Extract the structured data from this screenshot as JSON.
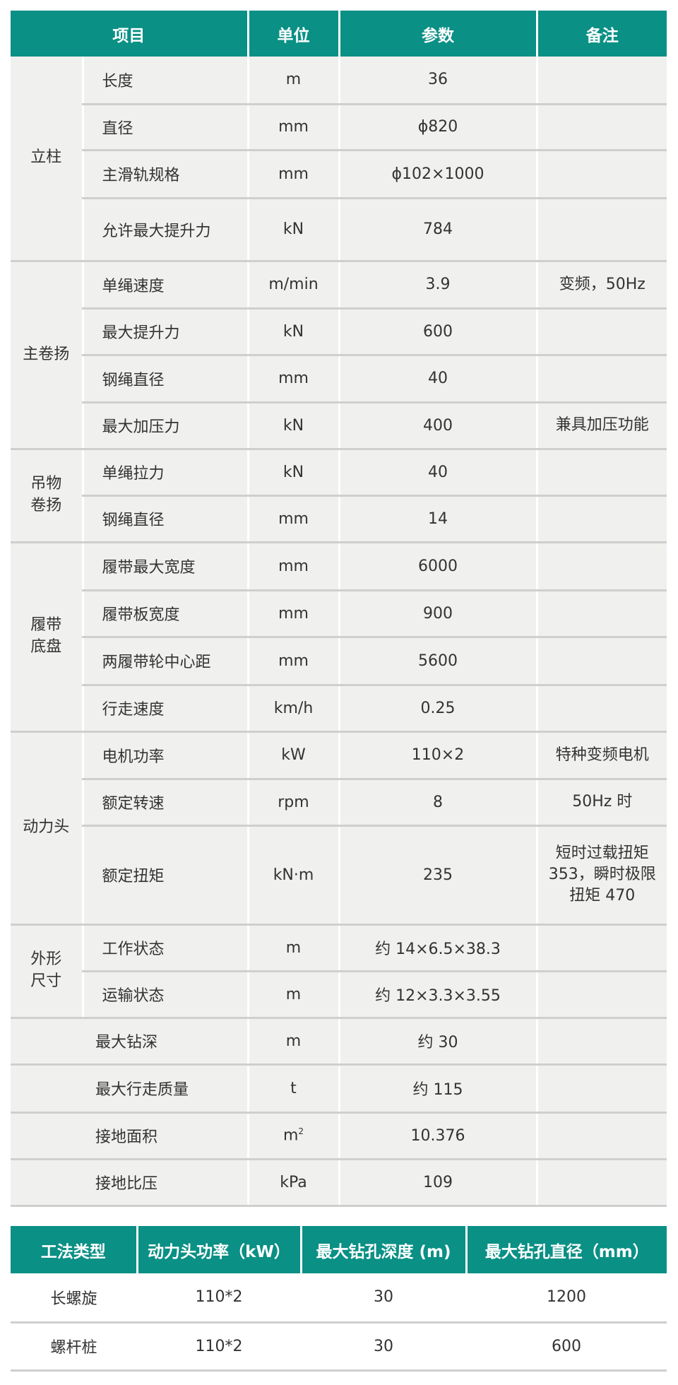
{
  "colors": {
    "header_bg": "#0a9085",
    "body_bg": "#f0f0ee"
  },
  "spec_table": {
    "headers": [
      "项目",
      "单位",
      "参数",
      "备注"
    ],
    "groups": [
      {
        "name": "立柱",
        "rows": [
          {
            "item": "长度",
            "unit": "m",
            "value": "36",
            "note": ""
          },
          {
            "item": "直径",
            "unit": "mm",
            "value": "ϕ820",
            "note": ""
          },
          {
            "item": "主滑轨规格",
            "unit": "mm",
            "value": "ϕ102×1000",
            "note": ""
          },
          {
            "item": "允许最大提升力",
            "unit": "kN",
            "value": "784",
            "note": ""
          }
        ]
      },
      {
        "name": "主卷扬",
        "rows": [
          {
            "item": "单绳速度",
            "unit": "m/min",
            "value": "3.9",
            "note": "变频，50Hz"
          },
          {
            "item": "最大提升力",
            "unit": "kN",
            "value": "600",
            "note": ""
          },
          {
            "item": "钢绳直径",
            "unit": "mm",
            "value": "40",
            "note": ""
          },
          {
            "item": "最大加压力",
            "unit": "kN",
            "value": "400",
            "note": "兼具加压功能"
          }
        ]
      },
      {
        "name": "吊物卷扬",
        "rows": [
          {
            "item": "单绳拉力",
            "unit": "kN",
            "value": "40",
            "note": ""
          },
          {
            "item": "钢绳直径",
            "unit": "mm",
            "value": "14",
            "note": ""
          }
        ]
      },
      {
        "name": "履带底盘",
        "rows": [
          {
            "item": "履带最大宽度",
            "unit": "mm",
            "value": "6000",
            "note": ""
          },
          {
            "item": "履带板宽度",
            "unit": "mm",
            "value": "900",
            "note": ""
          },
          {
            "item": "两履带轮中心距",
            "unit": "mm",
            "value": "5600",
            "note": ""
          },
          {
            "item": "行走速度",
            "unit": "km/h",
            "value": "0.25",
            "note": ""
          }
        ]
      },
      {
        "name": "动力头",
        "rows": [
          {
            "item": "电机功率",
            "unit": "kW",
            "value": "110×2",
            "note": "特种变频电机"
          },
          {
            "item": "额定转速",
            "unit": "rpm",
            "value": "8",
            "note": "50Hz 时"
          },
          {
            "item": "额定扭矩",
            "unit": "kN·m",
            "value": "235",
            "note": "短时过载扭矩 353，瞬时极限扭矩 470"
          }
        ]
      },
      {
        "name": "外形尺寸",
        "rows": [
          {
            "item": "工作状态",
            "unit": "m",
            "value": "约 14×6.5×38.3",
            "note": ""
          },
          {
            "item": "运输状态",
            "unit": "m",
            "value": "约 12×3.3×3.55",
            "note": ""
          }
        ]
      }
    ],
    "single_rows": [
      {
        "item": "最大钻深",
        "unit": "m",
        "value": "约 30",
        "note": ""
      },
      {
        "item": "最大行走质量",
        "unit": "t",
        "value": "约 115",
        "note": ""
      },
      {
        "item": "接地面积",
        "unit": "m",
        "unit_sup": "2",
        "value": "10.376",
        "note": ""
      },
      {
        "item": "接地比压",
        "unit": "kPa",
        "value": "109",
        "note": ""
      }
    ]
  },
  "method_table": {
    "headers": [
      "工法类型",
      "动力头功率（kW）",
      "最大钻孔深度 (m)",
      "最大钻孔直径（mm）"
    ],
    "rows": [
      [
        "长螺旋",
        "110*2",
        "30",
        "1200"
      ],
      [
        "螺杆桩",
        "110*2",
        "30",
        "600"
      ]
    ]
  }
}
